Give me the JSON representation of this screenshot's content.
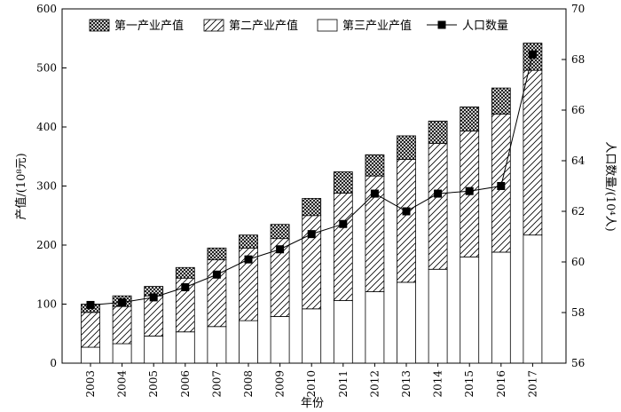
{
  "chart_data": {
    "type": "bar",
    "stacked": true,
    "categories": [
      "2003",
      "2004",
      "2005",
      "2006",
      "2007",
      "2008",
      "2009",
      "2010",
      "2011",
      "2012",
      "2013",
      "2014",
      "2015",
      "2016",
      "2017"
    ],
    "series": [
      {
        "name": "第三产业产值",
        "axis": "left",
        "pattern": "blank",
        "values": [
          27,
          33,
          46,
          53,
          62,
          72,
          79,
          92,
          106,
          121,
          137,
          159,
          180,
          188,
          217
        ]
      },
      {
        "name": "第二产业产值",
        "axis": "left",
        "pattern": "diagonal-hatch",
        "values": [
          59,
          63,
          68,
          91,
          113,
          123,
          132,
          158,
          182,
          196,
          208,
          213,
          213,
          234,
          279
        ]
      },
      {
        "name": "第一产业产值",
        "axis": "left",
        "pattern": "cross-hatch",
        "values": [
          14,
          18,
          16,
          18,
          20,
          22,
          24,
          29,
          36,
          36,
          40,
          38,
          41,
          44,
          46
        ]
      },
      {
        "name": "人口数量",
        "axis": "right",
        "type": "line",
        "marker": "filled-square",
        "values": [
          58.3,
          58.4,
          58.6,
          59.0,
          59.5,
          60.1,
          60.5,
          61.1,
          61.5,
          62.7,
          62.0,
          62.7,
          62.8,
          63.0,
          68.2
        ]
      }
    ],
    "xlabel": "年份",
    "ylabel_left": "产值/(10⁸元)",
    "ylabel_right": "人口数量/(10⁴人)",
    "ylim_left": [
      0,
      600
    ],
    "yticks_left": [
      0,
      100,
      200,
      300,
      400,
      500,
      600
    ],
    "ylim_right": [
      56,
      70
    ],
    "yticks_right": [
      56,
      58,
      60,
      62,
      64,
      66,
      68,
      70
    ],
    "grid": false,
    "legend_position": "top"
  }
}
